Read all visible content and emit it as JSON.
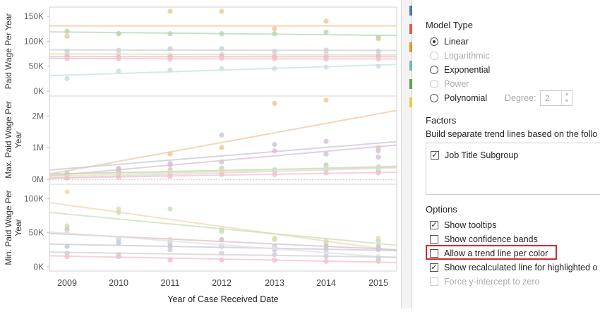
{
  "chart": {
    "x_title": "Year of Case Received Date",
    "x_ticks": [
      "2009",
      "2010",
      "2011",
      "2012",
      "2013",
      "2014",
      "2015"
    ],
    "panels": [
      {
        "ylabel_lines": [
          "Paid Wage Per Year"
        ],
        "ticks": [
          "150K",
          "100K",
          "50K",
          "0K"
        ]
      },
      {
        "ylabel_lines": [
          "Max. Paid Wage Per",
          "Year"
        ],
        "ticks": [
          "2M",
          "1M",
          "0M"
        ]
      },
      {
        "ylabel_lines": [
          "Min. Paid Wage Per",
          "Year"
        ],
        "ticks": [
          "100K",
          "50K",
          "0K"
        ]
      }
    ]
  },
  "chart_data": [
    {
      "type": "scatter",
      "title": "",
      "ylabel": "Paid Wage Per Year",
      "x": [
        2009,
        2010,
        2011,
        2012,
        2013,
        2014,
        2015
      ],
      "ylim": [
        0,
        160000
      ],
      "series_colors": [
        "#f0c8a0",
        "#b8d8b0",
        "#c8d0e0",
        "#f0d8b0",
        "#d8c0d8",
        "#f8c0c8",
        "#c8e0e0"
      ],
      "series": [
        {
          "values": [
            110000,
            115000,
            160000,
            160000,
            125000,
            140000,
            105000
          ]
        },
        {
          "values": [
            120000,
            115000,
            115000,
            115000,
            115000,
            118000,
            108000
          ]
        },
        {
          "values": [
            80000,
            82000,
            85000,
            85000,
            80000,
            82000,
            80000
          ]
        },
        {
          "values": [
            75000,
            75000,
            72000,
            73000,
            72000,
            75000,
            72000
          ]
        },
        {
          "values": [
            70000,
            68000,
            68000,
            70000,
            68000,
            68000,
            70000
          ]
        },
        {
          "values": [
            65000,
            65000,
            64000,
            66000,
            65000,
            64000,
            64000
          ]
        },
        {
          "values": [
            25000,
            40000,
            42000,
            45000,
            45000,
            48000,
            50000
          ]
        }
      ]
    },
    {
      "type": "scatter",
      "title": "",
      "ylabel": "Max. Paid Wage Per Year",
      "x": [
        2009,
        2010,
        2011,
        2012,
        2013,
        2014,
        2015
      ],
      "ylim": [
        0,
        2500000
      ],
      "series_colors": [
        "#f0c8a0",
        "#c8c8d8",
        "#d8c0d8",
        "#b8d8b0",
        "#f0d8b0",
        "#c8e0e0",
        "#f8c0c8"
      ],
      "series": [
        {
          "values": [
            200000,
            300000,
            800000,
            1000000,
            2400000,
            2500000,
            1000000
          ]
        },
        {
          "values": [
            150000,
            350000,
            500000,
            1400000,
            1100000,
            800000,
            900000
          ]
        },
        {
          "values": [
            120000,
            250000,
            450000,
            550000,
            900000,
            1200000,
            700000
          ]
        },
        {
          "values": [
            100000,
            200000,
            300000,
            350000,
            300000,
            450000,
            250000
          ]
        },
        {
          "values": [
            80000,
            150000,
            250000,
            300000,
            250000,
            350000,
            400000
          ]
        },
        {
          "values": [
            60000,
            100000,
            150000,
            200000,
            250000,
            300000,
            350000
          ]
        },
        {
          "values": [
            40000,
            80000,
            100000,
            150000,
            150000,
            200000,
            200000
          ]
        }
      ]
    },
    {
      "type": "scatter",
      "title": "",
      "ylabel": "Min. Paid Wage Per Year",
      "x": [
        2009,
        2010,
        2011,
        2012,
        2013,
        2014,
        2015
      ],
      "ylim": [
        0,
        115000
      ],
      "series_colors": [
        "#f0d8b0",
        "#c8e0b8",
        "#d8c0c8",
        "#c8c8e0",
        "#e0e0e0",
        "#f8c0c8",
        "#d0d0d8"
      ],
      "series": [
        {
          "values": [
            110000,
            85000,
            40000,
            55000,
            42000,
            38000,
            42000
          ]
        },
        {
          "values": [
            60000,
            80000,
            85000,
            52000,
            40000,
            35000,
            38000
          ]
        },
        {
          "values": [
            55000,
            40000,
            35000,
            40000,
            30000,
            30000,
            30000
          ]
        },
        {
          "values": [
            30000,
            35000,
            30000,
            30000,
            25000,
            25000,
            25000
          ]
        },
        {
          "values": [
            50000,
            42000,
            38000,
            32000,
            28000,
            20000,
            15000
          ]
        },
        {
          "values": [
            15000,
            18000,
            10000,
            10000,
            10000,
            8000,
            8000
          ]
        },
        {
          "values": [
            20000,
            15000,
            25000,
            20000,
            18000,
            15000,
            12000
          ]
        }
      ]
    }
  ],
  "panel": {
    "model_type_heading": "Model Type",
    "model_types": [
      {
        "label": "Linear",
        "selected": true,
        "disabled": false
      },
      {
        "label": "Logarithmic",
        "selected": false,
        "disabled": true
      },
      {
        "label": "Exponential",
        "selected": false,
        "disabled": false
      },
      {
        "label": "Power",
        "selected": false,
        "disabled": true
      },
      {
        "label": "Polynomial",
        "selected": false,
        "disabled": false
      }
    ],
    "degree_label": "Degree:",
    "degree_value": "2",
    "factors_heading": "Factors",
    "factors_description": "Build separate trend lines based on the follo",
    "factor_item": "Job Title Subgroup",
    "options_heading": "Options",
    "options": [
      {
        "label": "Show tooltips",
        "checked": true,
        "disabled": false
      },
      {
        "label": "Show confidence bands",
        "checked": false,
        "disabled": false
      },
      {
        "label": "Allow a trend line per color",
        "checked": false,
        "disabled": false
      },
      {
        "label": "Show recalculated line for highlighted o",
        "checked": true,
        "disabled": false
      },
      {
        "label": "Force y-intercept to zero",
        "checked": false,
        "disabled": true
      }
    ],
    "strip_colors": [
      "#4e79a7",
      "#e15759",
      "#f28e2b",
      "#76b7b2",
      "#59a14f",
      "#edc948",
      "#b07aa1",
      "#ff9da7"
    ]
  }
}
